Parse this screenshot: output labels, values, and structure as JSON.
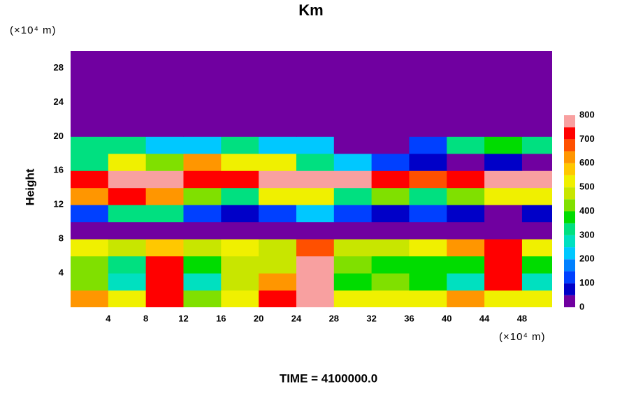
{
  "chart_data": {
    "type": "contour",
    "title": "Km",
    "y_unit_label": "(×10⁴ m)",
    "x_unit_label": "(×10⁴ m)",
    "ylabel": "Height",
    "annotation": "TIME = 4100000.0",
    "x": [
      2,
      6,
      10,
      14,
      18,
      22,
      26,
      30,
      34,
      38,
      42,
      46,
      50
    ],
    "y": [
      1,
      3,
      5,
      7,
      9,
      11,
      13,
      15,
      17,
      19,
      21,
      23,
      25,
      27,
      29
    ],
    "z": [
      [
        600,
        500,
        700,
        400,
        500,
        700,
        800,
        500,
        500,
        500,
        600,
        500,
        500
      ],
      [
        400,
        250,
        700,
        250,
        450,
        600,
        800,
        350,
        400,
        350,
        250,
        700,
        250
      ],
      [
        400,
        300,
        700,
        350,
        450,
        450,
        800,
        400,
        350,
        350,
        350,
        700,
        350
      ],
      [
        500,
        450,
        550,
        450,
        500,
        450,
        650,
        450,
        450,
        500,
        600,
        700,
        500
      ],
      [
        0,
        0,
        0,
        0,
        0,
        0,
        0,
        0,
        0,
        0,
        0,
        0,
        0
      ],
      [
        100,
        300,
        300,
        100,
        50,
        100,
        200,
        100,
        50,
        100,
        50,
        0,
        50
      ],
      [
        600,
        700,
        600,
        400,
        300,
        500,
        500,
        300,
        400,
        300,
        400,
        500,
        500
      ],
      [
        700,
        800,
        800,
        700,
        700,
        800,
        750,
        800,
        700,
        650,
        700,
        800,
        750
      ],
      [
        300,
        500,
        400,
        600,
        500,
        500,
        300,
        200,
        100,
        50,
        0,
        50,
        0
      ],
      [
        300,
        300,
        200,
        200,
        300,
        200,
        200,
        0,
        0,
        100,
        300,
        350,
        300
      ],
      [
        0,
        0,
        0,
        0,
        0,
        0,
        0,
        0,
        0,
        0,
        0,
        0,
        0
      ],
      [
        0,
        0,
        0,
        0,
        0,
        0,
        0,
        0,
        0,
        0,
        0,
        0,
        0
      ],
      [
        0,
        0,
        0,
        0,
        0,
        0,
        0,
        0,
        0,
        0,
        0,
        0,
        0
      ],
      [
        0,
        0,
        0,
        0,
        0,
        0,
        0,
        0,
        0,
        0,
        0,
        0,
        0
      ],
      [
        0,
        0,
        0,
        0,
        0,
        0,
        0,
        0,
        0,
        0,
        0,
        0,
        0
      ]
    ],
    "xlim": [
      0,
      51.2
    ],
    "ylim": [
      0,
      30
    ],
    "xticks": [
      4,
      8,
      12,
      16,
      20,
      24,
      28,
      32,
      36,
      40,
      44,
      48
    ],
    "yticks": [
      4,
      8,
      12,
      16,
      20,
      24,
      28
    ],
    "colorbar": {
      "levels": [
        0,
        50,
        100,
        150,
        200,
        250,
        300,
        350,
        400,
        450,
        500,
        550,
        600,
        650,
        700,
        750,
        800
      ],
      "colors": [
        "#7000a0",
        "#0000c8",
        "#0040ff",
        "#0080ff",
        "#00c8ff",
        "#00e0c0",
        "#00e080",
        "#00dc00",
        "#80e000",
        "#c8e600",
        "#f0f000",
        "#ffc800",
        "#ff9600",
        "#ff5000",
        "#ff0000",
        "#f8a0a0"
      ],
      "ticks": [
        0,
        100,
        200,
        300,
        400,
        500,
        600,
        700,
        800
      ]
    }
  }
}
